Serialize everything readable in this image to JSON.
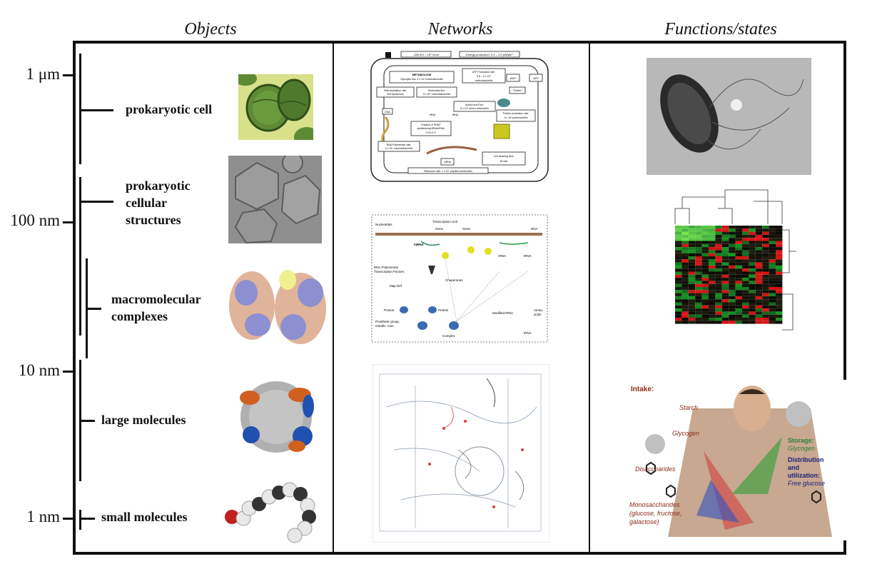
{
  "headers": {
    "objects": "Objects",
    "networks": "Networks",
    "functions": "Functions/states"
  },
  "scale": {
    "um1": "1 μm",
    "nm100": "100 nm",
    "nm10": "10 nm",
    "nm1": "1 nm"
  },
  "objects": {
    "prokaryotic_cell": "prokaryotic cell",
    "cellular_structures_l1": "prokaryotic",
    "cellular_structures_l2": "cellular",
    "cellular_structures_l3": "structures",
    "complexes_l1": "macromolecular",
    "complexes_l2": "complexes",
    "large_molecules": "large molecules",
    "small_molecules": "small molecules"
  },
  "metabolism_diagram": {
    "membrane_potential": "-230 mV = 10⁶ V/cm",
    "energy_production": "Energy production: 0.2 – 1.0 pW/μm³",
    "metabolism_title": "METABOLISM",
    "glycolytic_flux": "Glycolytic flux: 3 x 10⁶ molecules/cell/s",
    "atp_production": "ATP Production rate:",
    "atp_rate": "0.8 – 4 x 10⁶",
    "atp_units": "molecules/cell/s",
    "adp": "ADP",
    "atp": "ATP",
    "dna_replication": "DNA replication rate:",
    "dna_replication_rate": "900 bp/sec/fork",
    "nucleotide_flux": "Nucleotide flux:",
    "nucleotide_flux_rate": "3 x 10⁵ nucleotides/cell/s",
    "amino_acid_flux": "Amino Acid Flux:",
    "amino_acid_rate": "5 x 10⁵ amino acids/cell/s",
    "protein": "Protein",
    "protein_production": "Protein production rate:",
    "protein_production_rate": "3 x 10³ proteins/cell/s",
    "dna": "DNA",
    "rrna": "rRNA",
    "trna": "tRNA",
    "fraction_rnap": "Fraction of RNAP",
    "fraction_rnap2": "synthesizing tRNA/rRNA:",
    "fraction_value": "0.29-0.77",
    "rna_polymerase": "RNA Polymerase rate:",
    "rna_polymerase_rate": "3 x 10⁴ nucleotides/cell/s",
    "mrna": "mRNA",
    "doubling": "Cell doubling time:",
    "doubling_value": "60 min",
    "ribosome": "Ribosome rate: 1 x 10⁴ peptide bonds/cell/s"
  },
  "transcription_diagram": {
    "nucleotides": "Nucleotides",
    "transcription_unit": "Transcription Unit",
    "gene1": "Gene",
    "gene2": "Gene",
    "dna": "DNA",
    "mrna": "mRNA",
    "rrna": "rRNA",
    "trna": "tRNA",
    "rnap_tf": "RNA Polymerase",
    "rnap_tf2": "Transcription Factors",
    "chaperones": "Chaperones",
    "map_def": "Map Def",
    "protein1": "Protein",
    "protein2": "Protein",
    "modified_trna": "Modified tRNA",
    "amino_acids": "Amino",
    "amino_acids2": "acids",
    "prosthetic": "Prosthetic  group,",
    "prosthetic2": "metallo -ions",
    "complex": "Complex",
    "trna_bottom": "tRNA"
  },
  "nutrition_diagram": {
    "intake": "Intake:",
    "starch": "Starch",
    "glycogen": "Glycogen",
    "storage": "Storage:",
    "storage_glycogen": "Glycogen",
    "disaccharides": "Disaccharides",
    "distribution": "Distribution",
    "and": "and",
    "utilization": "utilization:",
    "free_glucose": "Free glucose",
    "monosaccharides": "Monosaccharides",
    "mono_list": "(glucose, fructose,",
    "mono_list2": "galactose)"
  },
  "colors": {
    "frame": "#111111",
    "intake_red": "#8b2a1a",
    "storage_green": "#2e7d32",
    "distribution_blue": "#1a237e",
    "heatmap_red": "#d32f2f",
    "heatmap_green": "#43a047"
  }
}
